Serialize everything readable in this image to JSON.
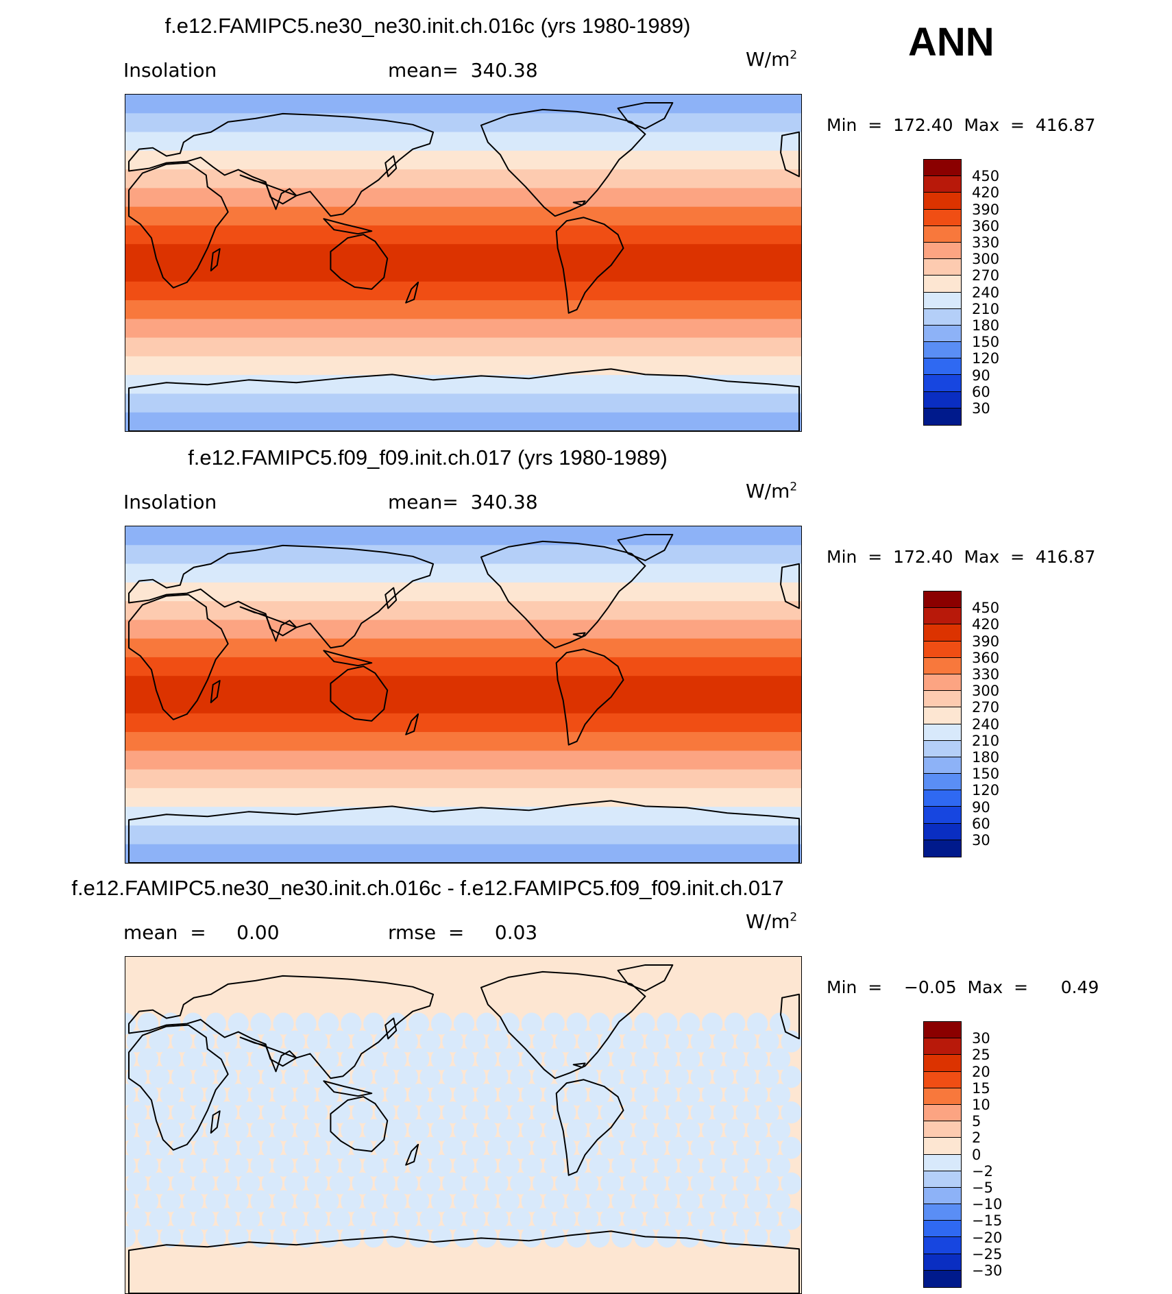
{
  "season_label": "ANN",
  "panels": [
    {
      "title": "f.e12.FAMIPC5.ne30_ne30.init.ch.016c (yrs 1980-1989)",
      "left_label": "Insolation",
      "stat_label": "mean=  340.38",
      "units": "W/m",
      "units_exp": "2",
      "minmax": "Min  =  172.40  Max  =  416.87",
      "kind": "field"
    },
    {
      "title": "f.e12.FAMIPC5.f09_f09.init.ch.017 (yrs 1980-1989)",
      "left_label": "Insolation",
      "stat_label": "mean=  340.38",
      "units": "W/m",
      "units_exp": "2",
      "minmax": "Min  =  172.40  Max  =  416.87",
      "kind": "field"
    },
    {
      "title": "f.e12.FAMIPC5.ne30_ne30.init.ch.016c - f.e12.FAMIPC5.f09_f09.init.ch.017",
      "left_label": "mean  =     0.00",
      "stat_label": "rmse  =     0.03",
      "units": "W/m",
      "units_exp": "2",
      "minmax": "Min  =    −0.05  Max  =      0.49",
      "kind": "diff"
    }
  ],
  "colorbar_field": {
    "ticks": [
      "450",
      "420",
      "390",
      "360",
      "330",
      "300",
      "270",
      "240",
      "210",
      "180",
      "150",
      "120",
      "90",
      "60",
      "30"
    ],
    "colors": [
      "#8b0000",
      "#b8190a",
      "#dc3300",
      "#f04e14",
      "#f8783c",
      "#fca482",
      "#fdcbb0",
      "#fde6d2",
      "#d8e9fb",
      "#b4cff8",
      "#8db2f7",
      "#5a8ef5",
      "#2f69f2",
      "#1746e0",
      "#0a2ec2",
      "#001a8c"
    ]
  },
  "colorbar_diff": {
    "ticks": [
      "30",
      "25",
      "20",
      "15",
      "10",
      "5",
      "2",
      "0",
      "−2",
      "−5",
      "−10",
      "−15",
      "−20",
      "−25",
      "−30"
    ],
    "colors": [
      "#8b0000",
      "#b8190a",
      "#dc3300",
      "#f04e14",
      "#f8783c",
      "#fca482",
      "#fdcbb0",
      "#fde6d2",
      "#d8e9fb",
      "#b4cff8",
      "#8db2f7",
      "#5a8ef5",
      "#2f69f2",
      "#1746e0",
      "#0a2ec2",
      "#001a8c"
    ]
  },
  "map_colors": {
    "field_bands": [
      "#8db2f7",
      "#b4cff8",
      "#d8e9fb",
      "#fde6d2",
      "#fdcbb0",
      "#fca482",
      "#f8783c",
      "#f04e14",
      "#dc3300",
      "#dc3300",
      "#f04e14",
      "#f8783c",
      "#fca482",
      "#fdcbb0",
      "#fde6d2",
      "#d8e9fb",
      "#b4cff8",
      "#8db2f7"
    ],
    "diff_fill": "#fde6d2",
    "diff_pattern": "#d8e9fb"
  }
}
